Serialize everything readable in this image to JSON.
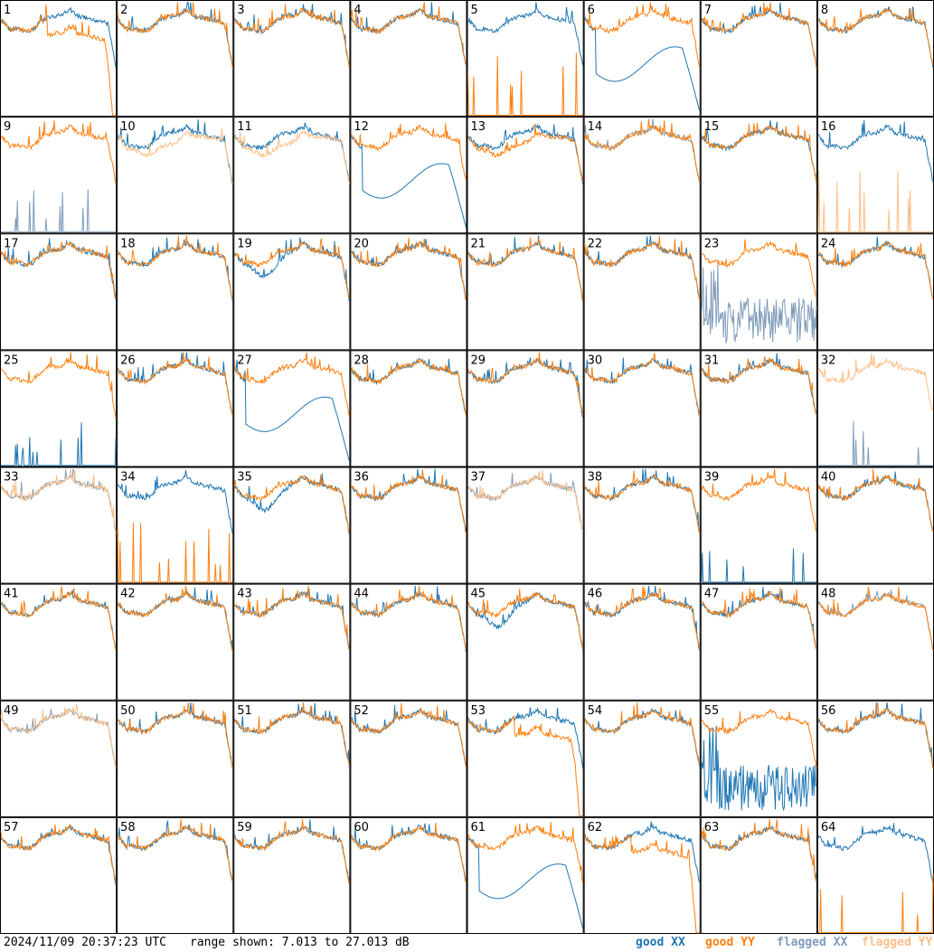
{
  "chart_data": {
    "type": "line",
    "grid": {
      "rows": 8,
      "cols": 8
    },
    "panels": [
      {
        "id": "1",
        "xx": "good",
        "yy": "good",
        "shape": "yy_drop_end"
      },
      {
        "id": "2",
        "xx": "good",
        "yy": "good",
        "shape": "normal"
      },
      {
        "id": "3",
        "xx": "good",
        "yy": "good",
        "shape": "normal"
      },
      {
        "id": "4",
        "xx": "good",
        "yy": "good",
        "shape": "normal"
      },
      {
        "id": "5",
        "xx": "good",
        "yy": "good",
        "shape": "yy_flat_spike"
      },
      {
        "id": "6",
        "xx": "good",
        "yy": "good",
        "shape": "xx_deep_dip"
      },
      {
        "id": "7",
        "xx": "good",
        "yy": "good",
        "shape": "normal"
      },
      {
        "id": "8",
        "xx": "good",
        "yy": "good",
        "shape": "normal"
      },
      {
        "id": "9",
        "xx": "flagged",
        "yy": "good",
        "shape": "xx_spikes"
      },
      {
        "id": "10",
        "xx": "good",
        "yy": "flagged",
        "shape": "yy_low"
      },
      {
        "id": "11",
        "xx": "good",
        "yy": "flagged",
        "shape": "yy_low"
      },
      {
        "id": "12",
        "xx": "good",
        "yy": "good",
        "shape": "xx_deep_dip"
      },
      {
        "id": "13",
        "xx": "good",
        "yy": "good",
        "shape": "yy_low"
      },
      {
        "id": "14",
        "xx": "flagged",
        "yy": "good",
        "shape": "normal"
      },
      {
        "id": "15",
        "xx": "good",
        "yy": "good",
        "shape": "normal"
      },
      {
        "id": "16",
        "xx": "good",
        "yy": "flagged",
        "shape": "yy_flat_spike"
      },
      {
        "id": "17",
        "xx": "good",
        "yy": "good",
        "shape": "normal"
      },
      {
        "id": "18",
        "xx": "good",
        "yy": "good",
        "shape": "normal"
      },
      {
        "id": "19",
        "xx": "good",
        "yy": "good",
        "shape": "xx_dip"
      },
      {
        "id": "20",
        "xx": "good",
        "yy": "good",
        "shape": "normal"
      },
      {
        "id": "21",
        "xx": "good",
        "yy": "good",
        "shape": "normal"
      },
      {
        "id": "22",
        "xx": "good",
        "yy": "good",
        "shape": "normal"
      },
      {
        "id": "23",
        "xx": "flagged",
        "yy": "good",
        "shape": "xx_noise"
      },
      {
        "id": "24",
        "xx": "good",
        "yy": "good",
        "shape": "normal"
      },
      {
        "id": "25",
        "xx": "good",
        "yy": "good",
        "shape": "xx_flat_spike"
      },
      {
        "id": "26",
        "xx": "good",
        "yy": "good",
        "shape": "normal"
      },
      {
        "id": "27",
        "xx": "good",
        "yy": "good",
        "shape": "xx_deep_dip"
      },
      {
        "id": "28",
        "xx": "good",
        "yy": "good",
        "shape": "normal"
      },
      {
        "id": "29",
        "xx": "good",
        "yy": "good",
        "shape": "normal"
      },
      {
        "id": "30",
        "xx": "good",
        "yy": "good",
        "shape": "normal"
      },
      {
        "id": "31",
        "xx": "good",
        "yy": "good",
        "shape": "normal"
      },
      {
        "id": "32",
        "xx": "flagged",
        "yy": "flagged",
        "shape": "xx_flat_spike"
      },
      {
        "id": "33",
        "xx": "flagged",
        "yy": "flagged",
        "shape": "normal"
      },
      {
        "id": "34",
        "xx": "good",
        "yy": "good",
        "shape": "yy_flat_spike"
      },
      {
        "id": "35",
        "xx": "good",
        "yy": "good",
        "shape": "xx_dip"
      },
      {
        "id": "36",
        "xx": "good",
        "yy": "good",
        "shape": "normal"
      },
      {
        "id": "37",
        "xx": "flagged",
        "yy": "flagged",
        "shape": "normal"
      },
      {
        "id": "38",
        "xx": "good",
        "yy": "good",
        "shape": "normal"
      },
      {
        "id": "39",
        "xx": "good",
        "yy": "good",
        "shape": "xx_flat_spike"
      },
      {
        "id": "40",
        "xx": "good",
        "yy": "good",
        "shape": "normal"
      },
      {
        "id": "41",
        "xx": "good",
        "yy": "good",
        "shape": "normal"
      },
      {
        "id": "42",
        "xx": "good",
        "yy": "good",
        "shape": "normal"
      },
      {
        "id": "43",
        "xx": "good",
        "yy": "good",
        "shape": "normal"
      },
      {
        "id": "44",
        "xx": "good",
        "yy": "good",
        "shape": "normal"
      },
      {
        "id": "45",
        "xx": "good",
        "yy": "good",
        "shape": "xx_dip"
      },
      {
        "id": "46",
        "xx": "good",
        "yy": "good",
        "shape": "normal"
      },
      {
        "id": "47",
        "xx": "good",
        "yy": "good",
        "shape": "normal"
      },
      {
        "id": "48",
        "xx": "flagged",
        "yy": "good",
        "shape": "normal"
      },
      {
        "id": "49",
        "xx": "flagged",
        "yy": "flagged",
        "shape": "normal"
      },
      {
        "id": "50",
        "xx": "good",
        "yy": "good",
        "shape": "normal"
      },
      {
        "id": "51",
        "xx": "good",
        "yy": "good",
        "shape": "normal"
      },
      {
        "id": "52",
        "xx": "good",
        "yy": "good",
        "shape": "normal"
      },
      {
        "id": "53",
        "xx": "good",
        "yy": "good",
        "shape": "yy_drop_end"
      },
      {
        "id": "54",
        "xx": "good",
        "yy": "good",
        "shape": "normal"
      },
      {
        "id": "55",
        "xx": "good",
        "yy": "good",
        "shape": "xx_noise"
      },
      {
        "id": "56",
        "xx": "good",
        "yy": "good",
        "shape": "normal"
      },
      {
        "id": "57",
        "xx": "good",
        "yy": "good",
        "shape": "normal"
      },
      {
        "id": "58",
        "xx": "good",
        "yy": "good",
        "shape": "normal"
      },
      {
        "id": "59",
        "xx": "good",
        "yy": "good",
        "shape": "normal"
      },
      {
        "id": "60",
        "xx": "good",
        "yy": "good",
        "shape": "normal"
      },
      {
        "id": "61",
        "xx": "good",
        "yy": "good",
        "shape": "xx_deep_dip"
      },
      {
        "id": "62",
        "xx": "good",
        "yy": "good",
        "shape": "yy_drop_end"
      },
      {
        "id": "63",
        "xx": "good",
        "yy": "good",
        "shape": "normal"
      },
      {
        "id": "64",
        "xx": "good",
        "yy": "good",
        "shape": "yy_flat_spike"
      }
    ],
    "range_db": [
      7.013,
      27.013
    ],
    "legend": {
      "good_xx": "good XX",
      "good_yy": "good YY",
      "flagged_xx": "flagged XX",
      "flagged_yy": "flagged YY"
    }
  },
  "footer": {
    "timestamp": "2024/11/09 20:37:23 UTC",
    "range_text": "range shown: 7.013 to 27.013 dB"
  },
  "colors": {
    "good_xx": "#1f77b4",
    "good_yy": "#ff7f0e",
    "flagged_xx": "#7f9cb9",
    "flagged_yy": "#ffbf87",
    "border": "#000000"
  }
}
